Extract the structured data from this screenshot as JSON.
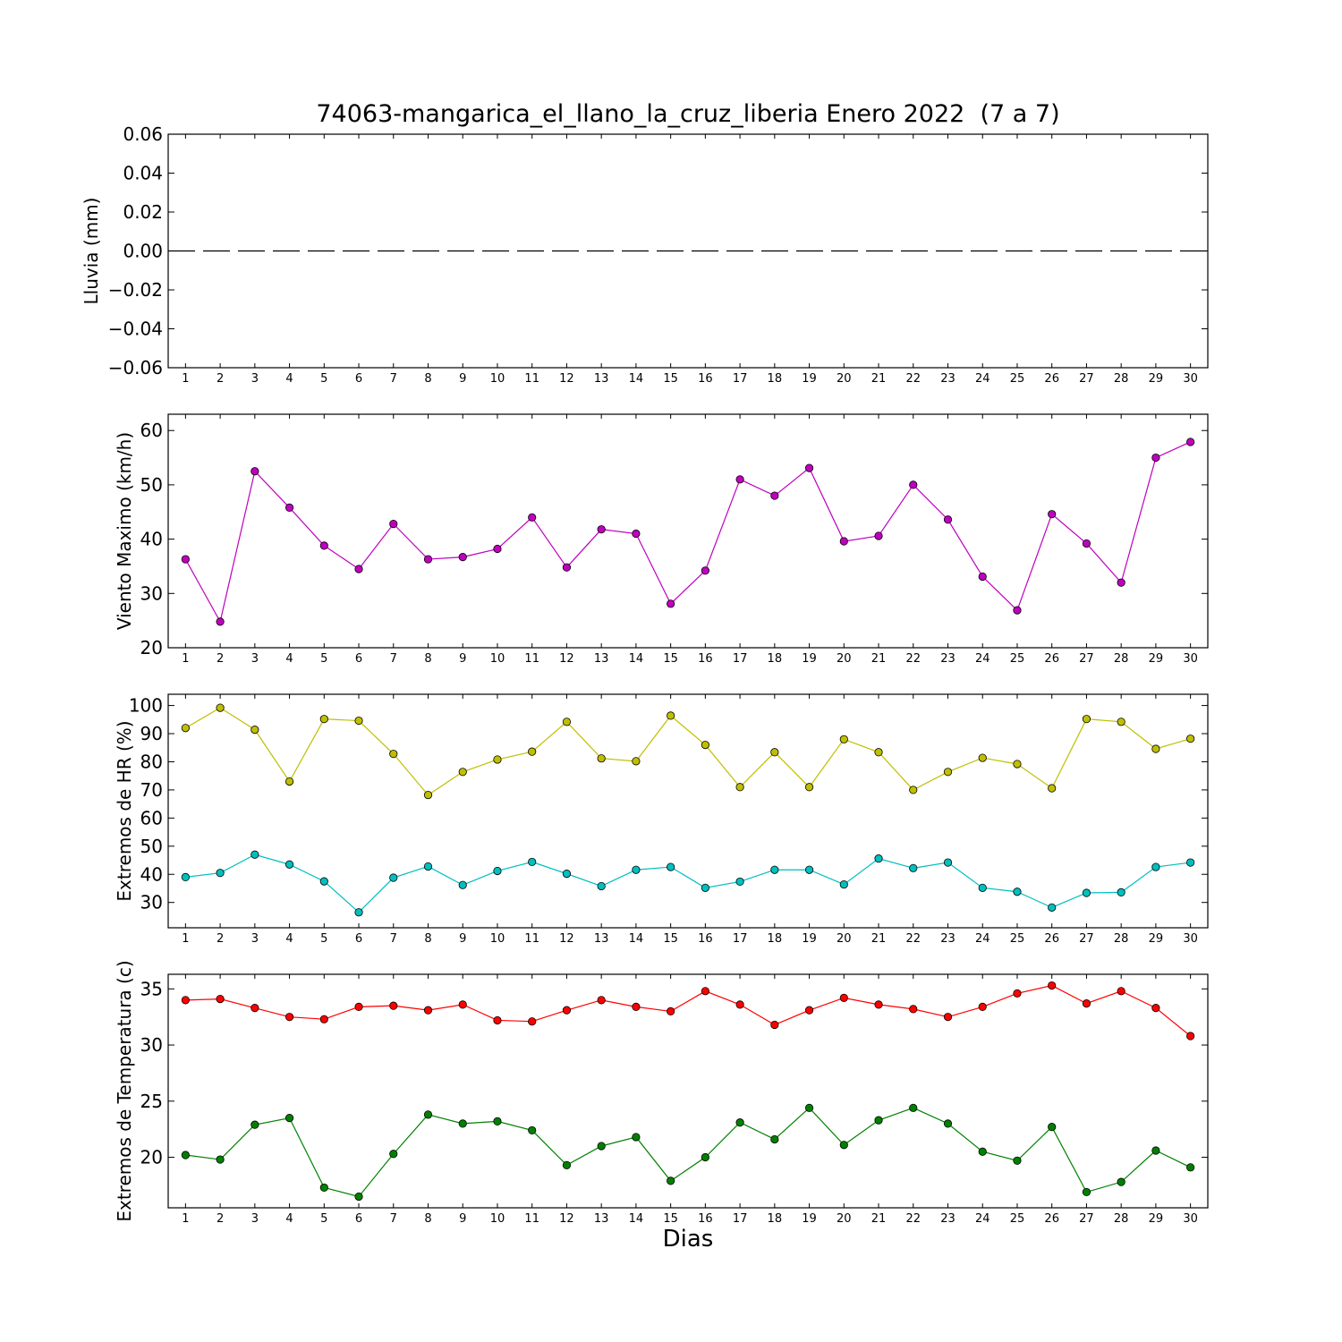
{
  "chart_data": {
    "title": "74063-mangarica_el_llano_la_cruz_liberia Enero 2022  (7 a 7)",
    "xlabel": "Dias",
    "x": [
      1,
      2,
      3,
      4,
      5,
      6,
      7,
      8,
      9,
      10,
      11,
      12,
      13,
      14,
      15,
      16,
      17,
      18,
      19,
      20,
      21,
      22,
      23,
      24,
      25,
      26,
      27,
      28,
      29,
      30
    ],
    "xlim": [
      0.5,
      30.5
    ],
    "subplots": [
      {
        "type": "line",
        "ylabel": "Lluvia (mm)",
        "ylim": [
          -0.06,
          0.06
        ],
        "yticks": [
          -0.06,
          -0.04,
          -0.02,
          0.0,
          0.02,
          0.04,
          0.06
        ],
        "ytick_labels": [
          "−0.06",
          "−0.04",
          "−0.02",
          "0.00",
          "0.02",
          "0.04",
          "0.06"
        ],
        "series": [
          {
            "color": "#000000",
            "line_style": "dashed",
            "markers": false,
            "values": [
              0,
              0,
              0,
              0,
              0,
              0,
              0,
              0,
              0,
              0,
              0,
              0,
              0,
              0,
              0,
              0,
              0,
              0,
              0,
              0,
              0,
              0,
              0,
              0,
              0,
              0,
              0,
              0,
              0,
              0
            ]
          }
        ]
      },
      {
        "type": "line",
        "ylabel": "Viento Maximo (km/h)",
        "ylim": [
          20,
          63
        ],
        "yticks": [
          20,
          30,
          40,
          50,
          60
        ],
        "ytick_labels": [
          "20",
          "30",
          "40",
          "50",
          "60"
        ],
        "series": [
          {
            "color": "#bf00bf",
            "line_style": "solid",
            "markers": true,
            "values": [
              36.3,
              24.8,
              52.5,
              45.8,
              38.8,
              34.5,
              42.8,
              36.3,
              36.7,
              38.2,
              44.0,
              34.8,
              41.8,
              41.0,
              28.1,
              34.2,
              51.0,
              48.0,
              53.1,
              39.6,
              40.6,
              50.0,
              43.6,
              33.1,
              26.9,
              44.6,
              39.2,
              32.0,
              55.0,
              57.9
            ]
          }
        ]
      },
      {
        "type": "line",
        "ylabel": "Extremos de HR (%)",
        "ylim": [
          21,
          104
        ],
        "yticks": [
          30,
          40,
          50,
          60,
          70,
          80,
          90,
          100
        ],
        "ytick_labels": [
          "30",
          "40",
          "50",
          "60",
          "70",
          "80",
          "90",
          "100"
        ],
        "series": [
          {
            "color": "#bfbf00",
            "line_style": "solid",
            "markers": true,
            "values": [
              92.0,
              99.2,
              91.4,
              73.0,
              95.2,
              94.6,
              82.8,
              68.2,
              76.4,
              80.8,
              83.6,
              94.2,
              81.2,
              80.2,
              96.4,
              86.0,
              71.0,
              83.4,
              71.0,
              88.0,
              83.4,
              70.0,
              76.4,
              81.4,
              79.2,
              70.6,
              95.2,
              94.2,
              84.6,
              88.2
            ]
          },
          {
            "color": "#00bfbf",
            "line_style": "solid",
            "markers": true,
            "values": [
              39.0,
              40.5,
              47.0,
              43.5,
              37.5,
              26.5,
              38.8,
              42.8,
              36.2,
              41.2,
              44.4,
              40.2,
              35.8,
              41.6,
              42.6,
              35.2,
              37.4,
              41.6,
              41.6,
              36.4,
              45.6,
              42.2,
              44.2,
              35.2,
              33.8,
              28.2,
              33.4,
              33.6,
              42.6,
              44.2
            ]
          }
        ]
      },
      {
        "type": "line",
        "ylabel": "Extremos de Temperatura (c)",
        "ylim": [
          15.5,
          36.3
        ],
        "yticks": [
          20,
          25,
          30,
          35
        ],
        "ytick_labels": [
          "20",
          "25",
          "30",
          "35"
        ],
        "series": [
          {
            "color": "#ff0000",
            "line_style": "solid",
            "markers": true,
            "values": [
              34.0,
              34.1,
              33.3,
              32.5,
              32.3,
              33.4,
              33.5,
              33.1,
              33.6,
              32.2,
              32.1,
              33.1,
              34.0,
              33.4,
              33.0,
              34.8,
              33.6,
              31.8,
              33.1,
              34.2,
              33.6,
              33.2,
              32.5,
              33.4,
              34.6,
              35.3,
              33.7,
              34.8,
              33.3,
              30.8
            ]
          },
          {
            "color": "#008000",
            "line_style": "solid",
            "markers": true,
            "values": [
              20.2,
              19.8,
              22.9,
              23.5,
              17.3,
              16.5,
              20.3,
              23.8,
              23.0,
              23.2,
              22.4,
              19.3,
              21.0,
              21.8,
              17.9,
              20.0,
              23.1,
              21.6,
              24.4,
              21.1,
              23.3,
              24.4,
              23.0,
              20.5,
              19.7,
              22.7,
              16.9,
              17.8,
              20.6,
              19.1
            ]
          }
        ]
      }
    ]
  }
}
